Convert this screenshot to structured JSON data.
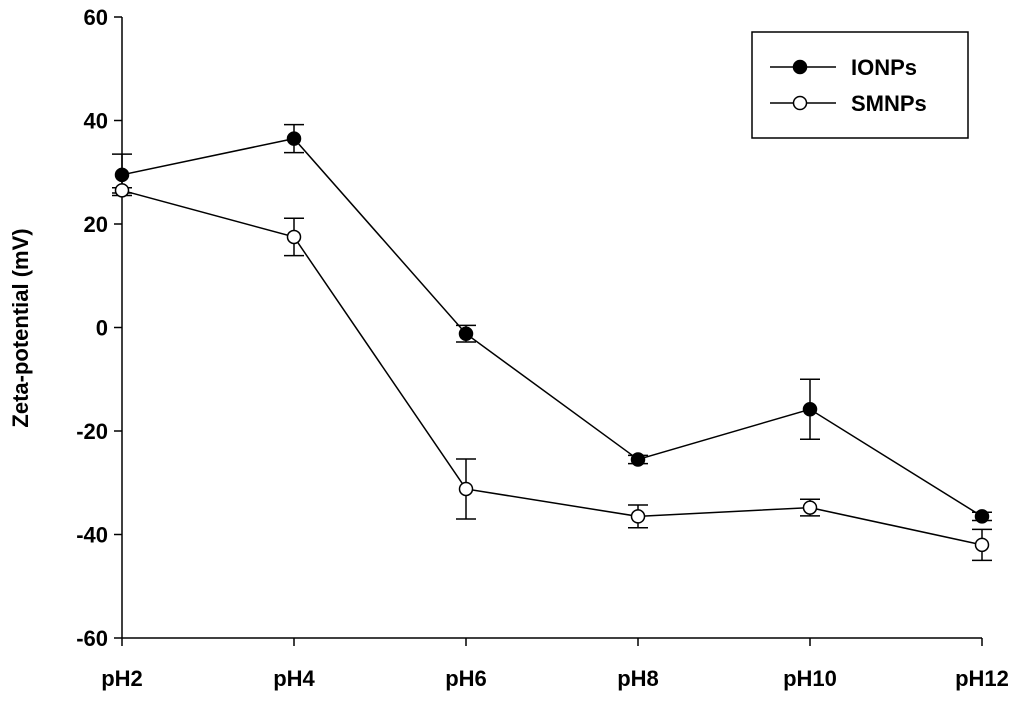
{
  "chart_data": {
    "type": "line",
    "title": "",
    "xlabel": "",
    "ylabel": "Zeta-potential (mV)",
    "categories": [
      "pH2",
      "pH4",
      "pH6",
      "pH8",
      "pH10",
      "pH12"
    ],
    "ylim": [
      -60,
      60
    ],
    "yticks": [
      -60,
      -40,
      -20,
      0,
      20,
      40,
      60
    ],
    "grid": false,
    "legend_position": "top-right",
    "series": [
      {
        "name": "IONPs",
        "marker": "filled-circle",
        "values": [
          29.5,
          36.5,
          -1.2,
          -25.5,
          -15.8,
          -36.5
        ],
        "errors": [
          4.0,
          2.7,
          1.6,
          0.8,
          5.8,
          0.8
        ]
      },
      {
        "name": "SMNPs",
        "marker": "open-circle",
        "values": [
          26.5,
          17.5,
          -31.2,
          -36.5,
          -34.8,
          -42.0
        ],
        "errors": [
          0.5,
          3.6,
          5.8,
          2.2,
          1.6,
          3.0
        ]
      }
    ]
  }
}
